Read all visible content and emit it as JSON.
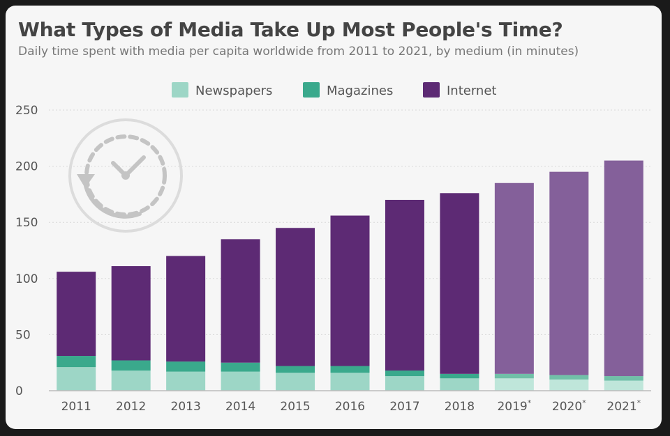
{
  "title": "What Types of Media Take Up Most People's Time?",
  "subtitle": "Daily time spent with media per capita worldwide from 2011 to 2021, by medium (in minutes)",
  "icon": "clock-history-icon",
  "colors": {
    "newspapers": "#9dd6c6",
    "magazines": "#3aa98c",
    "internet": "#5d2a74",
    "internet_forecast": "#84609a",
    "newspapers_forecast": "#bfe6da",
    "magazines_forecast": "#71c0a8"
  },
  "chart_data": {
    "type": "bar",
    "stacked": true,
    "categories": [
      "2011",
      "2012",
      "2013",
      "2014",
      "2015",
      "2016",
      "2017",
      "2018",
      "2019*",
      "2020*",
      "2021*"
    ],
    "forecast_categories": [
      "2019*",
      "2020*",
      "2021*"
    ],
    "series": [
      {
        "name": "Newspapers",
        "values": [
          21,
          18,
          17,
          17,
          16,
          16,
          13,
          11,
          11,
          10,
          9
        ]
      },
      {
        "name": "Magazines",
        "values": [
          10,
          9,
          9,
          8,
          6,
          6,
          5,
          4,
          4,
          4,
          4
        ]
      },
      {
        "name": "Internet",
        "values": [
          75,
          84,
          94,
          110,
          123,
          134,
          152,
          161,
          170,
          181,
          192
        ]
      }
    ],
    "yticks": [
      "0",
      "50",
      "100",
      "150",
      "200",
      "250"
    ],
    "ylim": [
      0,
      250
    ],
    "xlabel": "",
    "ylabel": "",
    "grid": true,
    "legend_position": "top-center"
  }
}
